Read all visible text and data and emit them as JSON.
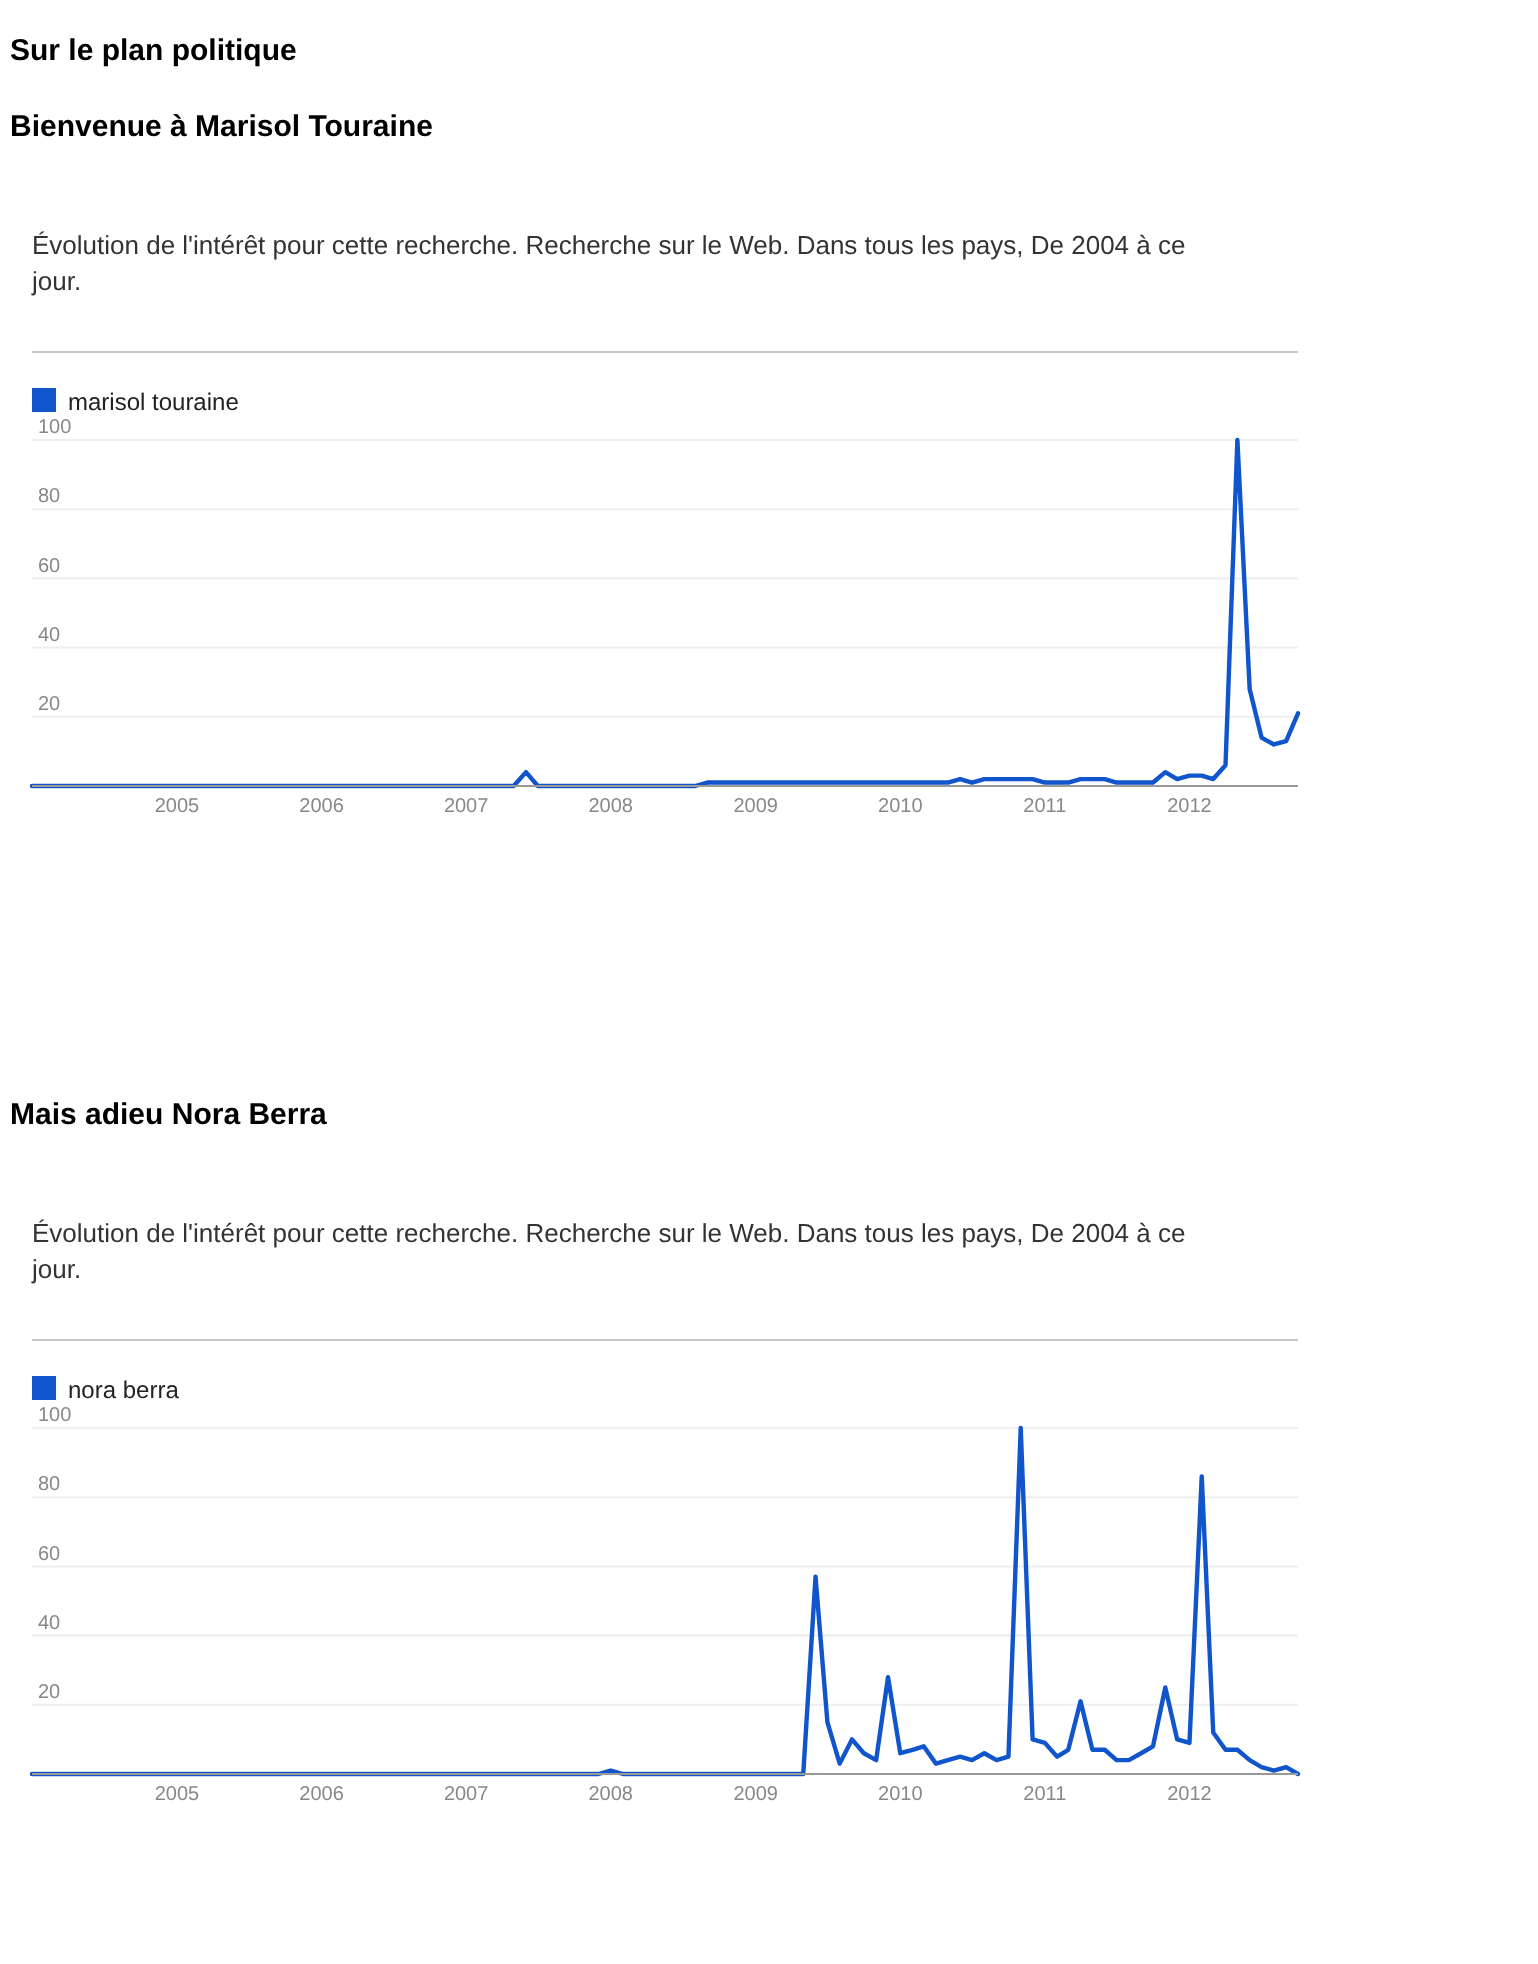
{
  "chart_data": [
    {
      "type": "line",
      "title": "Sur le plan politique",
      "subtitle": "Bienvenue à Marisol Touraine",
      "annotations": [
        "Évolution de l'intérêt pour cette recherche. Recherche sur le Web. Dans tous les pays, De 2004 à ce jour."
      ],
      "xlim": [
        "2004-01",
        "2012-10"
      ],
      "xticks": [
        "2005",
        "2006",
        "2007",
        "2008",
        "2009",
        "2010",
        "2011",
        "2012"
      ],
      "ylim": [
        0,
        100
      ],
      "yticks": [
        20,
        40,
        60,
        80,
        100
      ],
      "grid": "y",
      "legend": "top left",
      "marker": "none",
      "line_style": "solid",
      "series": [
        {
          "name": "marisol touraine",
          "color": "#1155cc",
          "x": [
            "2004-01",
            "2007-05",
            "2007-06",
            "2007-07",
            "2008-08",
            "2008-09",
            "2010-05",
            "2010-06",
            "2010-07",
            "2010-08",
            "2010-12",
            "2011-01",
            "2011-03",
            "2011-04",
            "2011-06",
            "2011-07",
            "2011-10",
            "2011-11",
            "2011-12",
            "2012-01",
            "2012-02",
            "2012-03",
            "2012-04",
            "2012-05",
            "2012-06",
            "2012-07",
            "2012-08",
            "2012-09",
            "2012-10"
          ],
          "values": [
            0,
            0,
            4,
            0,
            0,
            1,
            1,
            2,
            1,
            2,
            2,
            1,
            1,
            2,
            2,
            1,
            1,
            4,
            2,
            3,
            3,
            2,
            6,
            100,
            28,
            14,
            12,
            13,
            21
          ]
        }
      ]
    },
    {
      "type": "line",
      "title": "Mais adieu Nora Berra",
      "annotations": [
        "Évolution de l'intérêt pour cette recherche. Recherche sur le Web. Dans tous les pays, De 2004 à ce jour."
      ],
      "xlim": [
        "2004-01",
        "2012-10"
      ],
      "xticks": [
        "2005",
        "2006",
        "2007",
        "2008",
        "2009",
        "2010",
        "2011",
        "2012"
      ],
      "ylim": [
        0,
        100
      ],
      "yticks": [
        20,
        40,
        60,
        80,
        100
      ],
      "grid": "y",
      "legend": "top left",
      "marker": "none",
      "line_style": "solid",
      "series": [
        {
          "name": "nora berra",
          "color": "#1155cc",
          "x": [
            "2004-01",
            "2007-12",
            "2008-01",
            "2008-02",
            "2009-05",
            "2009-06",
            "2009-07",
            "2009-08",
            "2009-09",
            "2009-10",
            "2009-11",
            "2009-12",
            "2010-01",
            "2010-02",
            "2010-03",
            "2010-04",
            "2010-05",
            "2010-06",
            "2010-07",
            "2010-08",
            "2010-09",
            "2010-10",
            "2010-11",
            "2010-12",
            "2011-01",
            "2011-02",
            "2011-03",
            "2011-04",
            "2011-05",
            "2011-06",
            "2011-07",
            "2011-08",
            "2011-09",
            "2011-10",
            "2011-11",
            "2011-12",
            "2012-01",
            "2012-02",
            "2012-03",
            "2012-04",
            "2012-05",
            "2012-06",
            "2012-07",
            "2012-08",
            "2012-09",
            "2012-10"
          ],
          "values": [
            0,
            0,
            1,
            0,
            0,
            57,
            15,
            3,
            10,
            6,
            4,
            28,
            6,
            7,
            8,
            3,
            4,
            5,
            4,
            6,
            4,
            5,
            100,
            10,
            9,
            5,
            7,
            21,
            7,
            7,
            4,
            4,
            6,
            8,
            25,
            10,
            9,
            86,
            12,
            7,
            7,
            4,
            2,
            1,
            2,
            0
          ]
        }
      ]
    }
  ]
}
